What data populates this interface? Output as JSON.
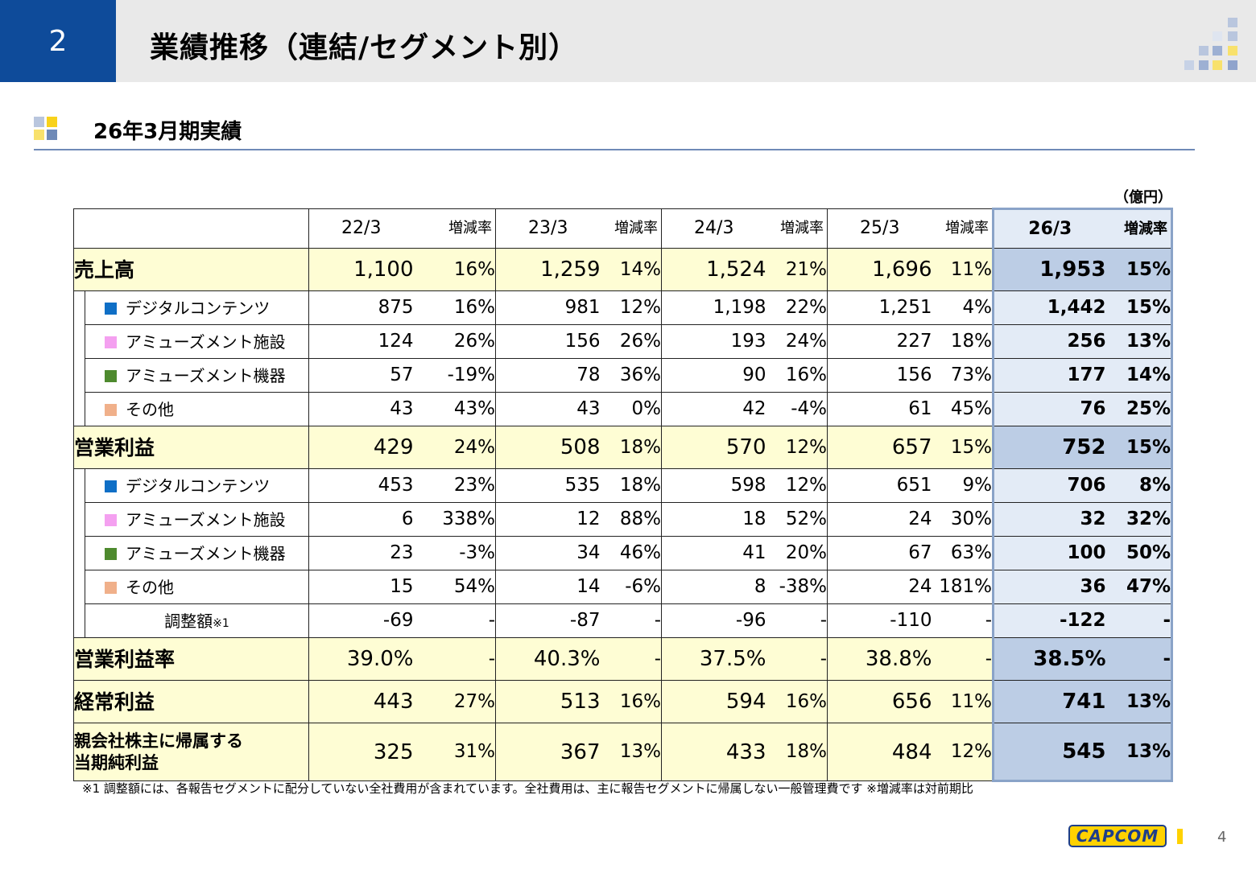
{
  "header": {
    "section_number": "2",
    "title": "業績推移（連結/セグメント別）"
  },
  "subtitle": "26年3月期実績",
  "unit": "（億円）",
  "columns": {
    "years": [
      "22/3",
      "23/3",
      "24/3",
      "25/3",
      "26/3"
    ],
    "change_label": "増減率"
  },
  "rows": {
    "sales": {
      "label": "売上高",
      "values": [
        "1,100",
        "16%",
        "1,259",
        "14%",
        "1,524",
        "21%",
        "1,696",
        "11%",
        "1,953",
        "15%"
      ]
    },
    "sales_digital": {
      "label": "デジタルコンテンツ",
      "values": [
        "875",
        "16%",
        "981",
        "12%",
        "1,198",
        "22%",
        "1,251",
        "4%",
        "1,442",
        "15%"
      ]
    },
    "sales_facilities": {
      "label": "アミューズメント施設",
      "values": [
        "124",
        "26%",
        "156",
        "26%",
        "193",
        "24%",
        "227",
        "18%",
        "256",
        "13%"
      ]
    },
    "sales_machines": {
      "label": "アミューズメント機器",
      "values": [
        "57",
        "-19%",
        "78",
        "36%",
        "90",
        "16%",
        "156",
        "73%",
        "177",
        "14%"
      ]
    },
    "sales_other": {
      "label": "その他",
      "values": [
        "43",
        "43%",
        "43",
        "0%",
        "42",
        "-4%",
        "61",
        "45%",
        "76",
        "25%"
      ]
    },
    "op_income": {
      "label": "営業利益",
      "values": [
        "429",
        "24%",
        "508",
        "18%",
        "570",
        "12%",
        "657",
        "15%",
        "752",
        "15%"
      ]
    },
    "op_digital": {
      "label": "デジタルコンテンツ",
      "values": [
        "453",
        "23%",
        "535",
        "18%",
        "598",
        "12%",
        "651",
        "9%",
        "706",
        "8%"
      ]
    },
    "op_facilities": {
      "label": "アミューズメント施設",
      "values": [
        "6",
        "338%",
        "12",
        "88%",
        "18",
        "52%",
        "24",
        "30%",
        "32",
        "32%"
      ]
    },
    "op_machines": {
      "label": "アミューズメント機器",
      "values": [
        "23",
        "-3%",
        "34",
        "46%",
        "41",
        "20%",
        "67",
        "63%",
        "100",
        "50%"
      ]
    },
    "op_other": {
      "label": "その他",
      "values": [
        "15",
        "54%",
        "14",
        "-6%",
        "8",
        "-38%",
        "24",
        "181%",
        "36",
        "47%"
      ]
    },
    "adjustment": {
      "label": "調整額",
      "note": "※1",
      "values": [
        "-69",
        "-",
        "-87",
        "-",
        "-96",
        "-",
        "-110",
        "-",
        "-122",
        "-"
      ]
    },
    "op_margin": {
      "label": "営業利益率",
      "values": [
        "39.0%",
        "-",
        "40.3%",
        "-",
        "37.5%",
        "-",
        "38.8%",
        "-",
        "38.5%",
        "-"
      ]
    },
    "ordinary": {
      "label": "経常利益",
      "values": [
        "443",
        "27%",
        "513",
        "16%",
        "594",
        "16%",
        "656",
        "11%",
        "741",
        "13%"
      ]
    },
    "net_income": {
      "label_line1": "親会社株主に帰属する",
      "label_line2": "当期純利益",
      "values": [
        "325",
        "31%",
        "367",
        "13%",
        "433",
        "18%",
        "484",
        "12%",
        "545",
        "13%"
      ]
    }
  },
  "colors": {
    "digital": "#0f6fc6",
    "facilities": "#f4a0f0",
    "machines": "#4e8a2e",
    "other": "#f0b08a",
    "highlight": "#bccde5",
    "highlight_light": "#e3ebf6",
    "row_yellow": "#fefdd4",
    "title_bar": "#0e4b9a"
  },
  "footnote": "※1 調整額には、各報告セグメントに配分していない全社費用が含まれています。全社費用は、主に報告セグメントに帰属しない一般管理費です ※増減率は対前期比",
  "logo_text": "CAPCOM",
  "page_number": "4"
}
